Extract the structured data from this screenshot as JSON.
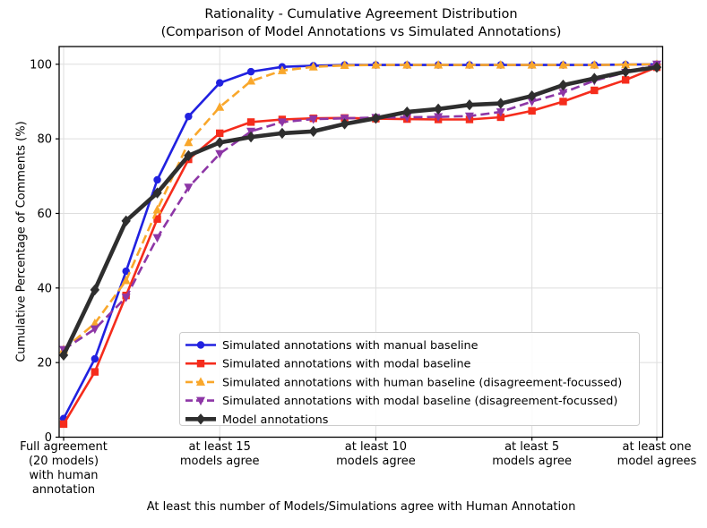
{
  "chart_data": {
    "type": "line",
    "title": "Rationality - Cumulative Agreement Distribution",
    "subtitle": "(Comparison of Model Annotations vs Simulated Annotations)",
    "xlabel": "At least this number of Models/Simulations agree with Human Annotation",
    "ylabel": "Cumulative Percentage of Comments (%)",
    "ylim": [
      0,
      100
    ],
    "yticks": [
      0,
      20,
      40,
      60,
      80,
      100
    ],
    "x_count": 20,
    "x_description": "number of agreeing models from 20 down to 1",
    "grid": true,
    "legend_position": "inside lower-right of axes",
    "xticks": [
      {
        "index": 0,
        "lines": [
          "Full agreement",
          "(20 models)",
          "with human",
          "annotation"
        ]
      },
      {
        "index": 5,
        "lines": [
          "at least 15",
          "models agree"
        ]
      },
      {
        "index": 10,
        "lines": [
          "at least 10",
          "models agree"
        ]
      },
      {
        "index": 15,
        "lines": [
          "at least 5",
          "models agree"
        ]
      },
      {
        "index": 19,
        "lines": [
          "at least one",
          "model agrees"
        ]
      }
    ],
    "series": [
      {
        "name": "Simulated annotations with manual baseline",
        "color": "#2121e0",
        "marker": "circle",
        "dashed": false,
        "width": 2.6,
        "values": [
          5,
          21,
          44.5,
          69,
          86,
          95,
          98,
          99.3,
          99.6,
          99.8,
          99.8,
          99.8,
          99.8,
          99.8,
          99.8,
          99.8,
          99.8,
          99.8,
          99.9,
          100
        ]
      },
      {
        "name": "Simulated annotations with modal baseline",
        "color": "#f52c1c",
        "marker": "square",
        "dashed": false,
        "width": 2.6,
        "values": [
          3.5,
          17.5,
          38,
          58.5,
          74.5,
          81.5,
          84.5,
          85.2,
          85.5,
          85.6,
          85.4,
          85.3,
          85.2,
          85.2,
          85.8,
          87.5,
          90,
          93,
          95.8,
          99.2
        ]
      },
      {
        "name": "Simulated annotations with human baseline (disagreement-focussed)",
        "color": "#f9a72b",
        "marker": "triangle-up",
        "dashed": true,
        "width": 2.6,
        "values": [
          23.5,
          30.5,
          42,
          61,
          79,
          88.5,
          95.5,
          98.3,
          99.3,
          99.7,
          99.8,
          99.8,
          99.8,
          99.8,
          99.8,
          99.8,
          99.8,
          99.8,
          99.9,
          100
        ]
      },
      {
        "name": "Simulated annotations with modal baseline (disagreement-focussed)",
        "color": "#8d36a6",
        "marker": "triangle-down",
        "dashed": true,
        "width": 2.6,
        "values": [
          23.5,
          29,
          37.5,
          53.5,
          67,
          76,
          82,
          84.5,
          85.3,
          85.5,
          85.7,
          85.8,
          85.9,
          86.1,
          87.2,
          90,
          92.4,
          95.6,
          97.8,
          100
        ]
      },
      {
        "name": "Model annotations",
        "color": "#2e2e2e",
        "marker": "diamond",
        "dashed": false,
        "width": 4.6,
        "values": [
          22,
          39.5,
          58,
          65.5,
          75.5,
          79,
          80.5,
          81.5,
          82,
          84,
          85.5,
          87.2,
          88,
          89.1,
          89.5,
          91.5,
          94.4,
          96.2,
          98,
          99.2
        ]
      }
    ],
    "colors": {
      "axis": "#000000",
      "grid": "#dedede",
      "legend_border": "#cccccc",
      "background": "#ffffff"
    }
  }
}
